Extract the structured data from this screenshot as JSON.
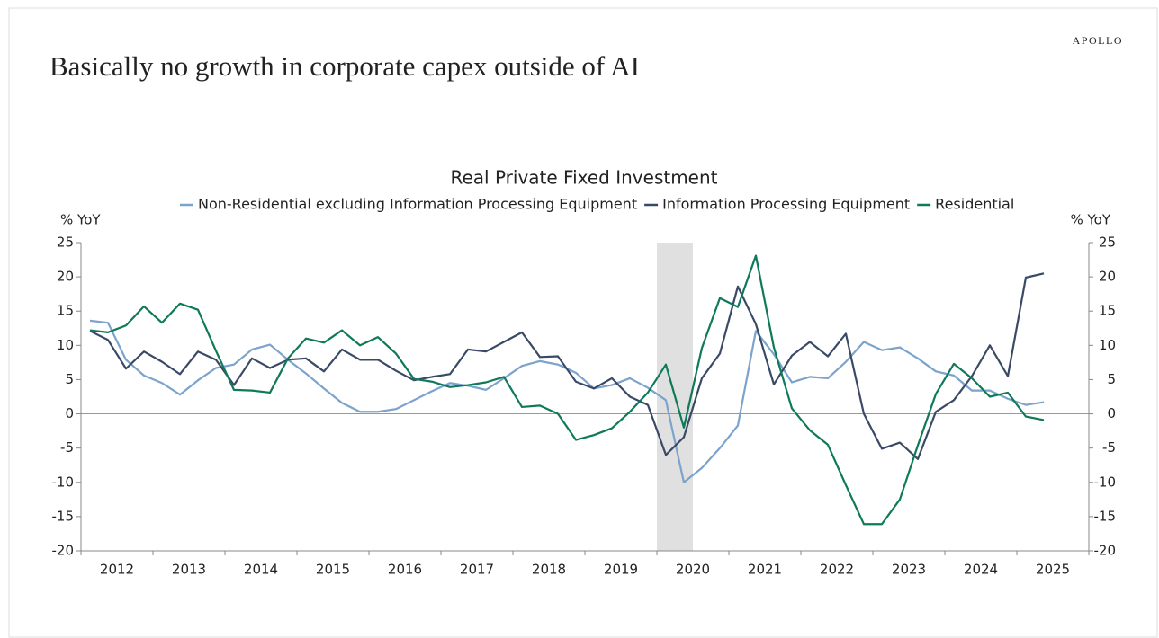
{
  "header": {
    "title": "Basically no growth in corporate capex outside of AI",
    "brand": "APOLLO"
  },
  "chart_data": {
    "type": "line",
    "title": "Real Private Fixed Investment",
    "ylabel": "% YoY",
    "y2label": "% YoY",
    "year_labels": [
      "2012",
      "2013",
      "2014",
      "2015",
      "2016",
      "2017",
      "2018",
      "2019",
      "2020",
      "2021",
      "2022",
      "2023",
      "2024",
      "2025"
    ],
    "xlim": [
      2012,
      2026
    ],
    "xticks": [
      2012,
      2013,
      2014,
      2015,
      2016,
      2017,
      2018,
      2019,
      2020,
      2021,
      2022,
      2023,
      2024,
      2025,
      2026
    ],
    "ylim": [
      -20,
      25
    ],
    "yticks": [
      -20,
      -15,
      -10,
      -5,
      0,
      5,
      10,
      15,
      20,
      25
    ],
    "y2lim": [
      -20,
      25
    ],
    "y2ticks": [
      -20,
      -15,
      -10,
      -5,
      0,
      5,
      10,
      15,
      20,
      25
    ],
    "shade": [
      2020,
      2020.5
    ],
    "x": [
      2012.125,
      2012.375,
      2012.625,
      2012.875,
      2013.125,
      2013.375,
      2013.625,
      2013.875,
      2014.125,
      2014.375,
      2014.625,
      2014.875,
      2015.125,
      2015.375,
      2015.625,
      2015.875,
      2016.125,
      2016.375,
      2016.625,
      2016.875,
      2017.125,
      2017.375,
      2017.625,
      2017.875,
      2018.125,
      2018.375,
      2018.625,
      2018.875,
      2019.125,
      2019.375,
      2019.625,
      2019.875,
      2020.125,
      2020.375,
      2020.625,
      2020.875,
      2021.125,
      2021.375,
      2021.625,
      2021.875,
      2022.125,
      2022.375,
      2022.625,
      2022.875,
      2023.125,
      2023.375,
      2023.625,
      2023.875,
      2024.125,
      2024.375,
      2024.625,
      2024.875,
      2025.125,
      2025.375
    ],
    "series": [
      {
        "name": "Non-Residential excluding Information Processing Equipment",
        "color": "#7ba3cc",
        "values": [
          13.6,
          13.3,
          7.9,
          5.6,
          4.5,
          2.8,
          4.9,
          6.7,
          7.2,
          9.4,
          10.1,
          7.9,
          5.9,
          3.7,
          1.6,
          0.3,
          0.3,
          0.7,
          2.0,
          3.3,
          4.5,
          4.1,
          3.5,
          5.2,
          7.0,
          7.7,
          7.2,
          6.0,
          3.7,
          4.2,
          5.2,
          3.8,
          2.0,
          -10.0,
          -7.9,
          -5.0,
          -1.7,
          12.1,
          8.7,
          4.6,
          5.4,
          5.2,
          7.6,
          10.5,
          9.3,
          9.7,
          8.1,
          6.2,
          5.6,
          3.4,
          3.4,
          2.2,
          1.3,
          1.7
        ]
      },
      {
        "name": "Information Processing Equipment",
        "color": "#3a4a66",
        "values": [
          12.1,
          10.8,
          6.6,
          9.1,
          7.6,
          5.8,
          9.1,
          7.9,
          4.2,
          8.1,
          6.7,
          7.9,
          8.1,
          6.2,
          9.4,
          7.9,
          7.9,
          6.3,
          4.9,
          5.4,
          5.8,
          9.4,
          9.1,
          10.5,
          11.9,
          8.3,
          8.4,
          4.7,
          3.7,
          5.2,
          2.5,
          1.3,
          -6.0,
          -3.4,
          5.2,
          8.8,
          18.6,
          13.1,
          4.3,
          8.5,
          10.5,
          8.4,
          11.7,
          0,
          -5.1,
          -4.2,
          -6.6,
          0.3,
          2.0,
          5.5,
          10.0,
          5.5,
          19.9,
          20.5
        ]
      },
      {
        "name": "Residential",
        "color": "#0e7a5a",
        "values": [
          12.2,
          11.9,
          12.9,
          15.7,
          13.3,
          16.1,
          15.2,
          9.2,
          3.5,
          3.4,
          3.1,
          8.1,
          11.0,
          10.4,
          12.2,
          10.0,
          11.2,
          8.8,
          5.1,
          4.7,
          3.9,
          4.2,
          4.6,
          5.4,
          1.0,
          1.2,
          0,
          -3.8,
          -3.1,
          -2.1,
          0.3,
          3.1,
          7.2,
          -2.0,
          9.6,
          16.9,
          15.6,
          23.1,
          9.7,
          0.8,
          -2.4,
          -4.5,
          -10.4,
          -16.1,
          -16.1,
          -12.5,
          -4.6,
          2.9,
          7.3,
          5.2,
          2.5,
          3.1,
          -0.4,
          -0.9
        ]
      }
    ]
  }
}
